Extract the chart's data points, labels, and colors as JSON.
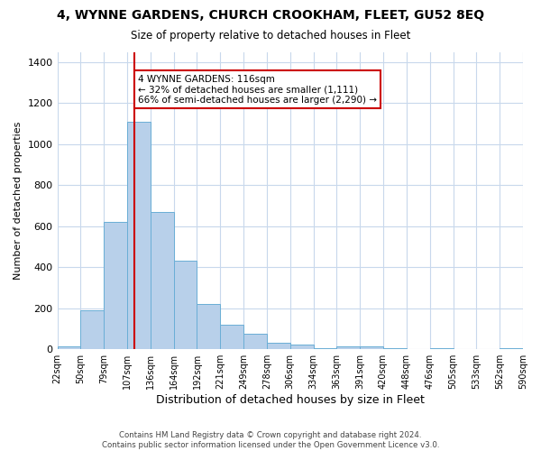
{
  "title": "4, WYNNE GARDENS, CHURCH CROOKHAM, FLEET, GU52 8EQ",
  "subtitle": "Size of property relative to detached houses in Fleet",
  "xlabel": "Distribution of detached houses by size in Fleet",
  "ylabel": "Number of detached properties",
  "bar_color": "#b8d0ea",
  "bar_edge_color": "#6aaed6",
  "background_color": "#ffffff",
  "grid_color": "#c8d8ec",
  "property_line_color": "#cc0000",
  "property_bin_index": 3,
  "bin_heights": [
    15,
    190,
    620,
    1110,
    670,
    430,
    220,
    120,
    75,
    30,
    25,
    5,
    15,
    15,
    5,
    0,
    5,
    0,
    0,
    5
  ],
  "ylim": [
    0,
    1450
  ],
  "yticks": [
    0,
    200,
    400,
    600,
    800,
    1000,
    1200,
    1400
  ],
  "annotation_text": "4 WYNNE GARDENS: 116sqm\n← 32% of detached houses are smaller (1,111)\n66% of semi-detached houses are larger (2,290) →",
  "annotation_box_color": "#ffffff",
  "annotation_box_edge_color": "#cc0000",
  "footer_line1": "Contains HM Land Registry data © Crown copyright and database right 2024.",
  "footer_line2": "Contains public sector information licensed under the Open Government Licence v3.0.",
  "tick_labels": [
    "22sqm",
    "50sqm",
    "79sqm",
    "107sqm",
    "136sqm",
    "164sqm",
    "192sqm",
    "221sqm",
    "249sqm",
    "278sqm",
    "306sqm",
    "334sqm",
    "363sqm",
    "391sqm",
    "420sqm",
    "448sqm",
    "476sqm",
    "505sqm",
    "533sqm",
    "562sqm",
    "590sqm"
  ],
  "title_fontsize": 10,
  "subtitle_fontsize": 8.5,
  "ylabel_fontsize": 8,
  "xlabel_fontsize": 9
}
